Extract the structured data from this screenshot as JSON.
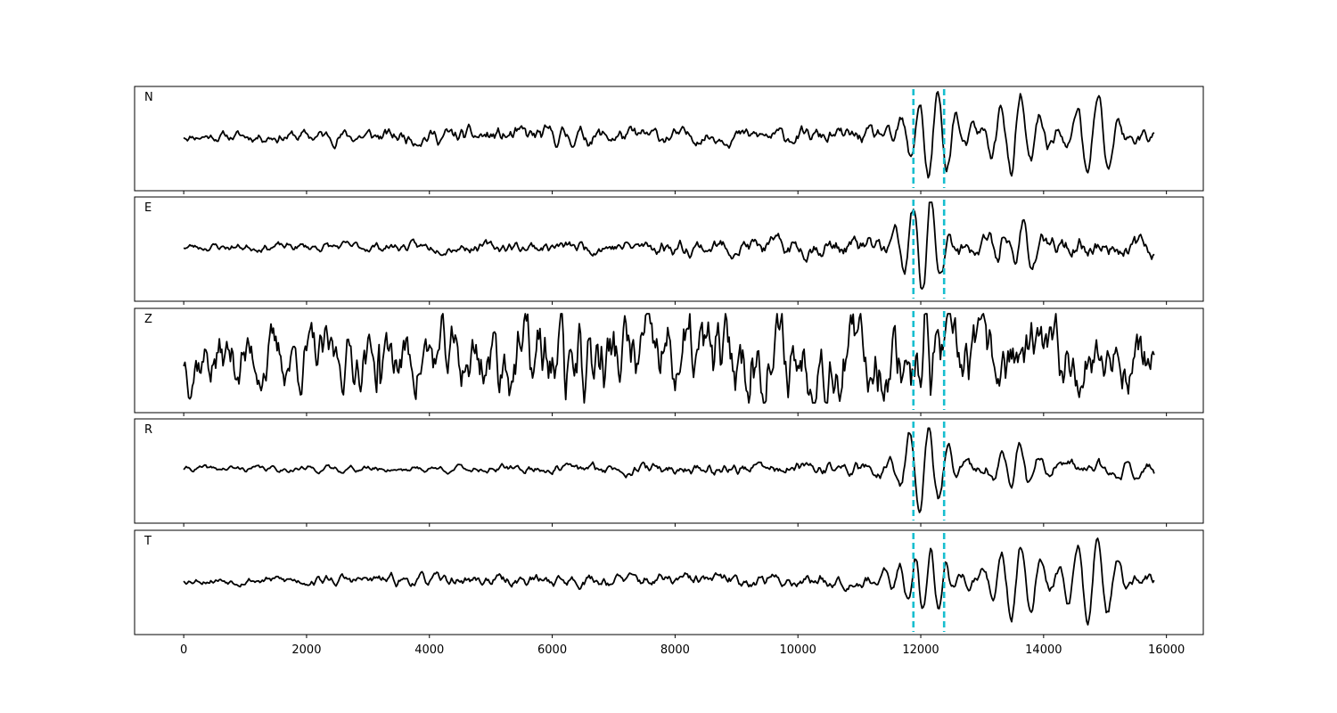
{
  "chart_data": {
    "type": "line",
    "title": "",
    "xlabel": "",
    "ylabel": "",
    "xlim": [
      -800,
      16600
    ],
    "x_ticks": [
      0,
      2000,
      4000,
      6000,
      8000,
      10000,
      12000,
      14000,
      16000
    ],
    "x_tick_labels": [
      "0",
      "2000",
      "4000",
      "6000",
      "8000",
      "10000",
      "12000",
      "14000",
      "16000"
    ],
    "sample_range": [
      0,
      15800
    ],
    "y_axis_visible": false,
    "grid": false,
    "pick_lines": {
      "x": [
        11880,
        12380
      ],
      "color": "#17becf",
      "style": "dashed"
    },
    "series": [
      {
        "name": "N",
        "noise_amplitude": 0.18,
        "envelope": [
          [
            0,
            0.25
          ],
          [
            2400,
            0.4
          ],
          [
            6000,
            0.55
          ],
          [
            8400,
            0.4
          ],
          [
            11800,
            0.5
          ]
        ],
        "bursts": [
          {
            "x": 12200,
            "amplitude": 0.95,
            "period": 300,
            "width": 350
          },
          {
            "x": 13550,
            "amplitude": 0.9,
            "period": 320,
            "width": 300
          },
          {
            "x": 14800,
            "amplitude": 0.95,
            "period": 350,
            "width": 300
          }
        ]
      },
      {
        "name": "E",
        "noise_amplitude": 0.18,
        "envelope": [
          [
            0,
            0.22
          ],
          [
            4000,
            0.3
          ],
          [
            6000,
            0.35
          ],
          [
            8000,
            0.45
          ],
          [
            11000,
            0.6
          ],
          [
            15800,
            0.55
          ]
        ],
        "bursts": [
          {
            "x": 12100,
            "amplitude": 1.0,
            "period": 300,
            "width": 300
          },
          {
            "x": 13600,
            "amplitude": 0.55,
            "period": 300,
            "width": 300
          }
        ]
      },
      {
        "name": "Z",
        "noise_amplitude": 0.55,
        "envelope": [
          [
            0,
            0.55
          ],
          [
            3000,
            0.55
          ],
          [
            6000,
            0.8
          ],
          [
            8500,
            0.8
          ],
          [
            10000,
            0.75
          ],
          [
            12000,
            0.7
          ],
          [
            15800,
            0.55
          ]
        ],
        "bursts": [
          {
            "x": 3150,
            "amplitude": 0.6,
            "period": 80,
            "width": 60
          },
          {
            "x": 6420,
            "amplitude": 0.95,
            "period": 160,
            "width": 160
          },
          {
            "x": 12050,
            "amplitude": 0.8,
            "period": 160,
            "width": 140
          }
        ]
      },
      {
        "name": "R",
        "noise_amplitude": 0.15,
        "envelope": [
          [
            0,
            0.2
          ],
          [
            5000,
            0.25
          ],
          [
            6000,
            0.35
          ],
          [
            11000,
            0.45
          ],
          [
            15800,
            0.5
          ]
        ],
        "bursts": [
          {
            "x": 12050,
            "amplitude": 1.0,
            "period": 320,
            "width": 320
          },
          {
            "x": 13550,
            "amplitude": 0.5,
            "period": 300,
            "width": 300
          }
        ]
      },
      {
        "name": "T",
        "noise_amplitude": 0.16,
        "envelope": [
          [
            0,
            0.22
          ],
          [
            2400,
            0.35
          ],
          [
            6000,
            0.4
          ],
          [
            11800,
            0.45
          ]
        ],
        "bursts": [
          {
            "x": 12100,
            "amplitude": 0.7,
            "period": 250,
            "width": 300
          },
          {
            "x": 13550,
            "amplitude": 0.85,
            "period": 320,
            "width": 300
          },
          {
            "x": 14800,
            "amplitude": 1.0,
            "period": 330,
            "width": 300
          }
        ]
      }
    ]
  }
}
